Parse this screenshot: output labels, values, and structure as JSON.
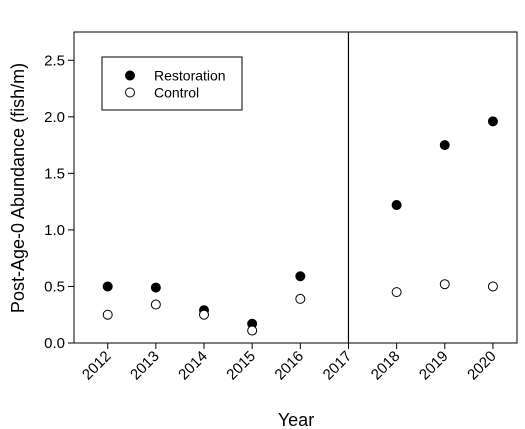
{
  "chart_data": {
    "type": "scatter",
    "xlabel": "Year",
    "ylabel": "Post-Age-0 Abundance (fish/m)",
    "x_ticks": [
      "2012",
      "2013",
      "2014",
      "2015",
      "2016",
      "2017",
      "2018",
      "2019",
      "2020"
    ],
    "y_ticks": [
      "0.0",
      "0.5",
      "1.0",
      "1.5",
      "2.0",
      "2.5"
    ],
    "ylim": [
      0,
      2.75
    ],
    "xlim": [
      2011.3,
      2020.5
    ],
    "reference_line": 2017,
    "grid": false,
    "legend_position": "top-left",
    "series": [
      {
        "name": "Restoration",
        "marker": "filled-circle",
        "color": "#000000",
        "x": [
          2012,
          2013,
          2014,
          2015,
          2016,
          2018,
          2019,
          2020
        ],
        "y": [
          0.5,
          0.49,
          0.29,
          0.17,
          0.59,
          1.22,
          1.75,
          1.96
        ]
      },
      {
        "name": "Control",
        "marker": "open-circle",
        "color": "#000000",
        "x": [
          2012,
          2013,
          2014,
          2015,
          2016,
          2018,
          2019,
          2020
        ],
        "y": [
          0.25,
          0.34,
          0.25,
          0.11,
          0.39,
          0.45,
          0.52,
          0.5
        ]
      }
    ]
  }
}
